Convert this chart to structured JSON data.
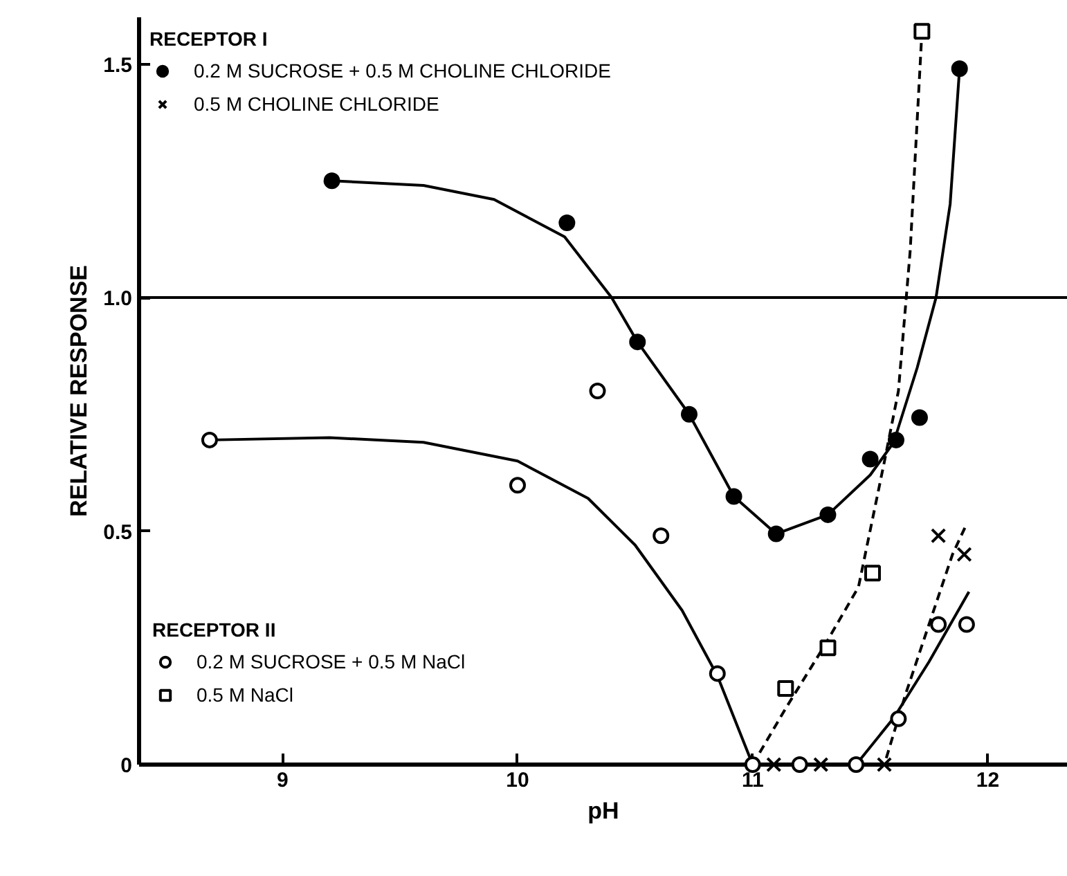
{
  "chart_data": {
    "type": "scatter",
    "xlabel": "pH",
    "ylabel": "RELATIVE RESPONSE",
    "annotations": [
      "RECEPTOR I",
      "RECEPTOR II"
    ],
    "xlim": [
      8.39,
      12.34
    ],
    "xticks": [
      9,
      10,
      11,
      12
    ],
    "ylim": [
      0,
      1.6
    ],
    "yticks": [
      0,
      0.5,
      {
        "value": 1,
        "label": "1.0"
      },
      1.5
    ],
    "grid": false,
    "legend": "top left",
    "ref_lines": [
      {
        "axis": "y",
        "value": 1,
        "color": "#000000",
        "line_style": "solid"
      }
    ],
    "series": [
      {
        "name": "0.2 M SUCROSE + 0.5 M CHOLINE CHLORIDE",
        "marker": "circle",
        "color": "#000000",
        "x": [
          9.21,
          10.21,
          10.51,
          10.73,
          10.92,
          11.1,
          11.32,
          11.5,
          11.61,
          11.71,
          11.88
        ],
        "values": [
          1.25,
          1.16,
          0.905,
          0.75,
          0.574,
          0.494,
          0.535,
          0.654,
          0.695,
          0.743,
          1.49
        ]
      },
      {
        "name": "0.5 M CHOLINE CHLORIDE",
        "marker": "cross",
        "color": "#000000",
        "x": [
          11.09,
          11.29,
          11.56,
          11.79,
          11.9
        ],
        "values": [
          0,
          0,
          0,
          0.49,
          0.45
        ]
      },
      {
        "name": "0.2 M SUCROSE + 0.5 M NaCl",
        "marker": "circle",
        "color": "#ffffff",
        "x": [
          8.69,
          10.0,
          10.34,
          10.61,
          10.85,
          11.0,
          11.2,
          11.44,
          11.62,
          11.79,
          11.91
        ],
        "values": [
          0.695,
          0.598,
          0.8,
          0.49,
          0.195,
          0,
          0,
          0,
          0.098,
          0.3,
          0.3
        ]
      },
      {
        "name": "0.5 M NaCl",
        "marker": "square",
        "color": "#ffffff",
        "x": [
          11.14,
          11.32,
          11.51,
          11.72
        ],
        "values": [
          0.163,
          0.25,
          0.41,
          1.57
        ]
      },
      {
        "type": "line",
        "marker": "none",
        "line_style": "solid",
        "color": "#000000",
        "x": [
          9.21,
          9.6,
          9.9,
          10.2,
          10.4,
          10.51,
          10.73,
          10.92,
          11.1,
          11.32,
          11.5,
          11.6,
          11.7,
          11.78,
          11.84,
          11.88
        ],
        "values": [
          1.25,
          1.24,
          1.21,
          1.13,
          1.0,
          0.905,
          0.75,
          0.574,
          0.494,
          0.535,
          0.62,
          0.69,
          0.85,
          1.0,
          1.2,
          1.49
        ]
      },
      {
        "type": "line",
        "marker": "none",
        "line_style": "solid",
        "color": "#000000",
        "x": [
          8.69,
          9.2,
          9.6,
          10.0,
          10.3,
          10.5,
          10.7,
          10.85,
          11.0,
          11.2,
          11.44,
          11.6,
          11.75,
          11.92
        ],
        "values": [
          0.695,
          0.7,
          0.69,
          0.65,
          0.57,
          0.47,
          0.33,
          0.19,
          0,
          null,
          0,
          0.1,
          0.22,
          0.37
        ]
      },
      {
        "type": "line",
        "marker": "none",
        "line_style": "dashed",
        "color": "#000000",
        "x": [
          11.0,
          11.14,
          11.3,
          11.45,
          11.56,
          11.62,
          11.67,
          11.72
        ],
        "values": [
          0,
          0.12,
          0.25,
          0.38,
          0.648,
          0.8,
          1.1,
          1.57
        ]
      },
      {
        "type": "line",
        "marker": "none",
        "line_style": "dashed",
        "color": "#000000",
        "x": [
          11.0,
          11.56,
          11.65,
          11.75,
          11.85,
          11.91
        ],
        "values": [
          0,
          0,
          0.15,
          0.3,
          0.45,
          0.515
        ]
      }
    ]
  }
}
